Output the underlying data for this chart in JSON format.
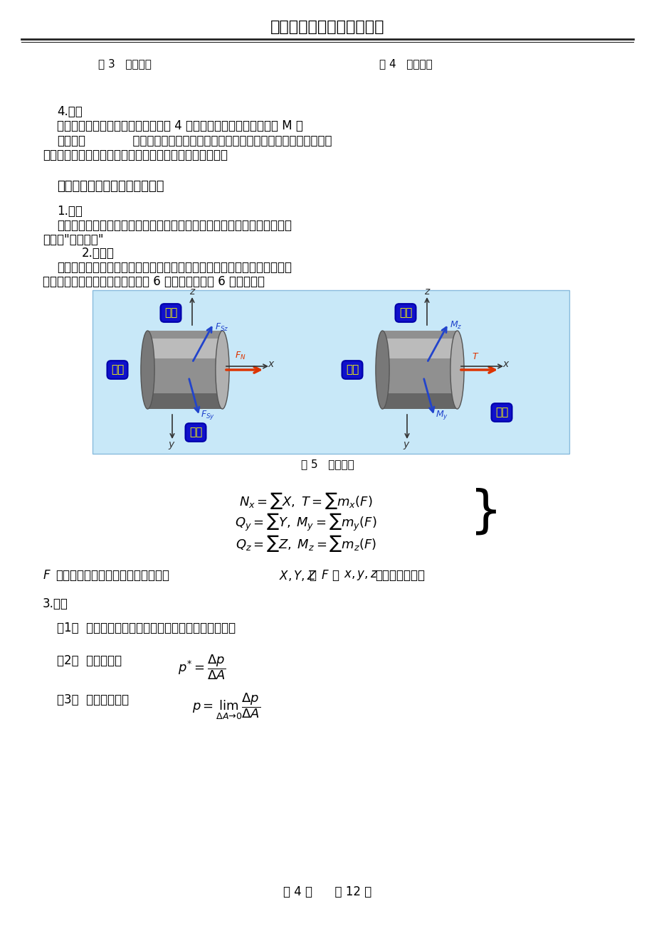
{
  "title": "大连理工大学网络教育学院",
  "bg_color": "#ffffff",
  "page_footer": "第 4 页      共 12 页",
  "line1_left": "图 3   扭转作用",
  "line1_right": "图 4   弯曲作用",
  "section4_title": "4.弯曲",
  "section4_body1": "受垂直于杆轴的横向荷载作用（如图 4 所示），主要内力分量为弯矩 M 。",
  "section4_bold": "组合变形",
  "section4_body2": "  更多的工程构件可简化为两种以上基本变形形式的组合，如拉伸",
  "section4_body3": "与扭转的组合，弯曲与扭转的组合等，称为组合变形形式。",
  "section_heading": "四、内力、截面法、应力和应变",
  "sub1_title": "1.内力",
  "sub1_body1": "材料力学中的内力专指外力作用下材料因抵抗变形所引起的内力的变化量，",
  "sub1_body2": "也就是\"附加内力\"",
  "sub2_title": "2.截面法",
  "sub2_body1": "截面法是暴露内力与求解内力的基本方法，根据作用与研究对象上的外力与",
  "sub2_body2": "截面上的内力相平衡，分别由下列 6 个平衡条件求解 6 个内力分量",
  "fig5_caption": "图 5   内力分量",
  "formula_note1": "F 表示作用于研究对象上的所有外力；X,Y,Z 为 F 沿 x,y,z 轴的三个分量。",
  "sub3_title": "3.应力",
  "sub3_item1": "（1）  概念：应力是指内力在截面上一点处分布集度。",
  "sub3_item2_pre": "（2）  平均应力：  ",
  "sub3_item3_pre": "（3）  一点的应力：  "
}
